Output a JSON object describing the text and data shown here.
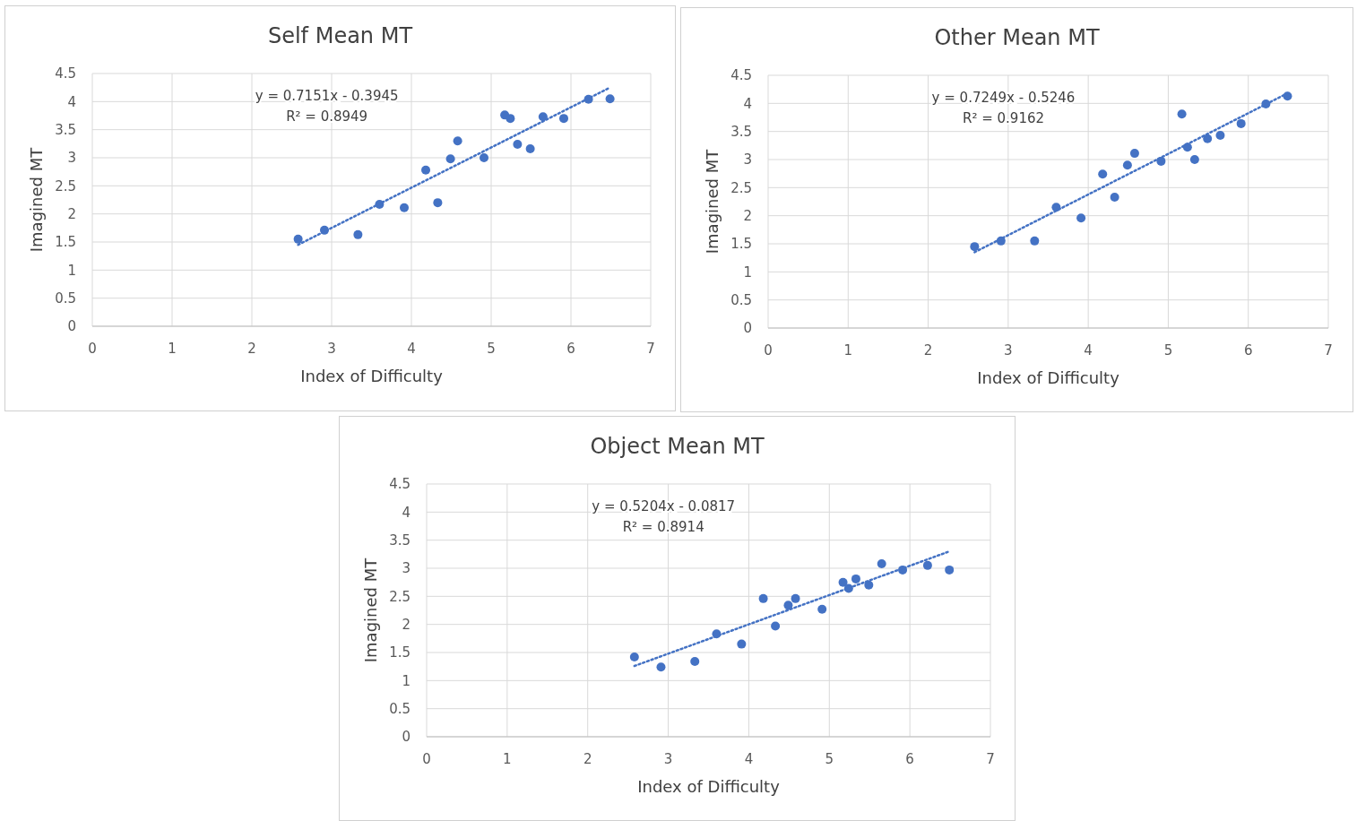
{
  "chart_data": [
    {
      "type": "scatter",
      "title": "Self Mean MT",
      "xlabel": "Index of Difficulty",
      "ylabel": "Imagined MT",
      "xlim": [
        0,
        7
      ],
      "xticks": [
        0,
        1,
        2,
        3,
        4,
        5,
        6,
        7
      ],
      "ylim": [
        0,
        4.5
      ],
      "yticks": [
        0,
        0.5,
        1,
        1.5,
        2,
        2.5,
        3,
        3.5,
        4,
        4.5
      ],
      "grid": true,
      "marker": "circle",
      "annotations": [
        "y = 0.7151x - 0.3945",
        "R² = 0.8949"
      ],
      "series": [
        {
          "color": "#4472c4",
          "x": [
            2.58,
            2.91,
            3.33,
            3.6,
            3.91,
            4.18,
            4.33,
            4.49,
            4.58,
            4.91,
            5.17,
            5.24,
            5.33,
            5.49,
            5.65,
            5.91,
            6.22,
            6.49
          ],
          "values": [
            1.55,
            1.71,
            1.63,
            2.17,
            2.11,
            2.78,
            2.2,
            2.98,
            3.3,
            3.0,
            3.76,
            3.7,
            3.24,
            3.16,
            3.73,
            3.7,
            4.04,
            4.05
          ]
        },
        {
          "type": "line",
          "color": "#4472c4",
          "line_style": "dotted",
          "marker": "none",
          "x": [
            2.58,
            6.49
          ],
          "values": [
            1.45,
            4.25
          ]
        }
      ]
    },
    {
      "type": "scatter",
      "title": "Other Mean MT",
      "xlabel": "Index of Difficulty",
      "ylabel": "Imagined MT",
      "xlim": [
        0,
        7
      ],
      "xticks": [
        0,
        1,
        2,
        3,
        4,
        5,
        6,
        7
      ],
      "ylim": [
        0,
        4.5
      ],
      "yticks": [
        0,
        0.5,
        1,
        1.5,
        2,
        2.5,
        3,
        3.5,
        4,
        4.5
      ],
      "grid": true,
      "marker": "circle",
      "annotations": [
        "y = 0.7249x - 0.5246",
        "R² = 0.9162"
      ],
      "series": [
        {
          "color": "#4472c4",
          "x": [
            2.58,
            2.91,
            3.33,
            3.6,
            3.91,
            4.18,
            4.33,
            4.49,
            4.58,
            4.91,
            5.17,
            5.24,
            5.33,
            5.49,
            5.65,
            5.91,
            6.22,
            6.49
          ],
          "values": [
            1.45,
            1.55,
            1.55,
            2.15,
            1.96,
            2.74,
            2.33,
            2.9,
            3.11,
            2.97,
            3.81,
            3.22,
            3.0,
            3.37,
            3.43,
            3.64,
            3.99,
            4.13
          ]
        },
        {
          "type": "line",
          "color": "#4472c4",
          "line_style": "dotted",
          "marker": "none",
          "x": [
            2.58,
            6.49
          ],
          "values": [
            1.35,
            4.18
          ]
        }
      ]
    },
    {
      "type": "scatter",
      "title": "Object Mean MT",
      "xlabel": "Index of Difficulty",
      "ylabel": "Imagined MT",
      "xlim": [
        0,
        7
      ],
      "xticks": [
        0,
        1,
        2,
        3,
        4,
        5,
        6,
        7
      ],
      "ylim": [
        0,
        4.5
      ],
      "yticks": [
        0,
        0.5,
        1,
        1.5,
        2,
        2.5,
        3,
        3.5,
        4,
        4.5
      ],
      "grid": true,
      "marker": "circle",
      "annotations": [
        "y = 0.5204x - 0.0817",
        "R² = 0.8914"
      ],
      "series": [
        {
          "color": "#4472c4",
          "x": [
            2.58,
            2.91,
            3.33,
            3.6,
            3.91,
            4.18,
            4.33,
            4.49,
            4.58,
            4.91,
            5.17,
            5.24,
            5.33,
            5.49,
            5.65,
            5.91,
            6.22,
            6.49
          ],
          "values": [
            1.42,
            1.24,
            1.34,
            1.83,
            1.65,
            2.46,
            1.97,
            2.34,
            2.46,
            2.27,
            2.75,
            2.64,
            2.81,
            2.7,
            3.08,
            2.97,
            3.05,
            2.97
          ]
        },
        {
          "type": "line",
          "color": "#4472c4",
          "line_style": "dotted",
          "marker": "none",
          "x": [
            2.58,
            6.49
          ],
          "values": [
            1.26,
            3.3
          ]
        }
      ]
    }
  ]
}
